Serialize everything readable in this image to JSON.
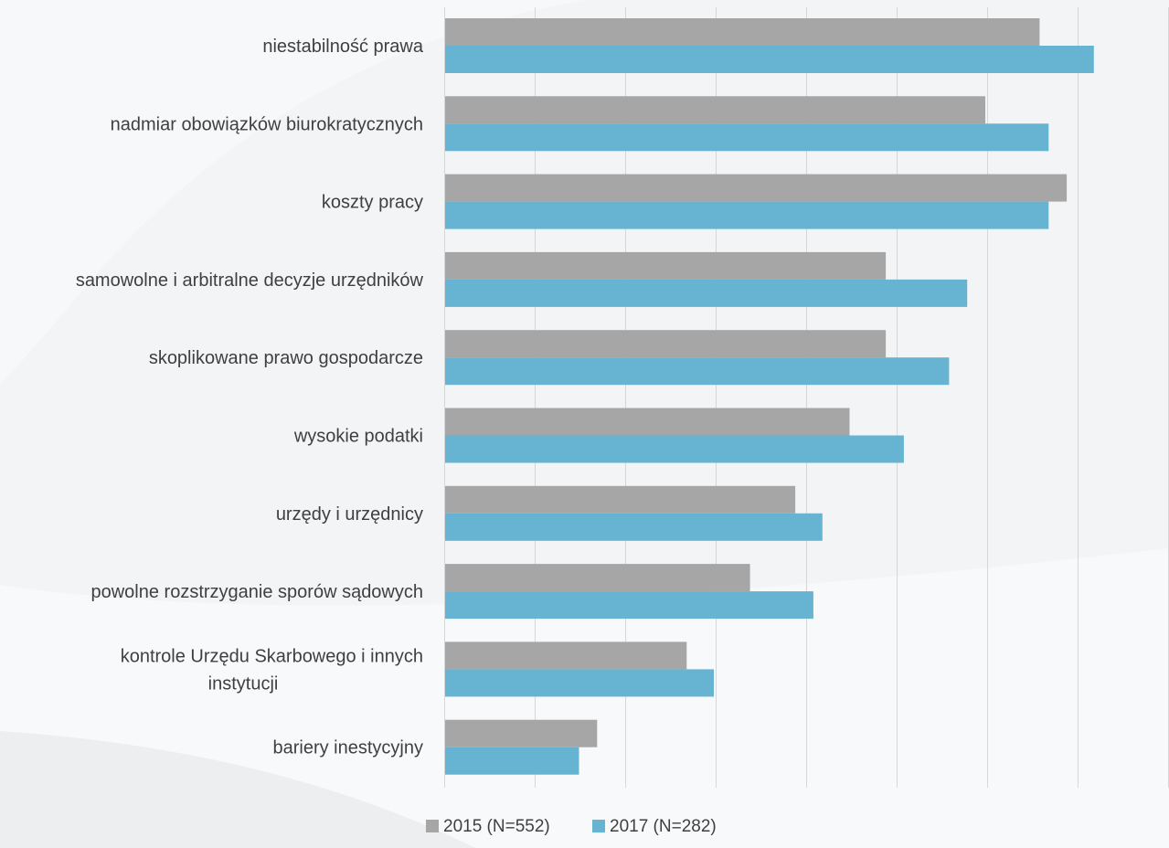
{
  "chart_data": {
    "type": "bar",
    "orientation": "horizontal",
    "categories": [
      "niestabilność prawa",
      "nadmiar obowiązków biurokratycznych",
      "koszty pracy",
      "samowolne i arbitralne decyzje urzędników",
      "skoplikowane prawo gospodarcze",
      "wysokie podatki",
      "urzędy i urzędnicy",
      "powolne rozstrzyganie sporów sądowych",
      "kontrole Urzędu Skarbowego i innych instytucji",
      "bariery inestycyjny"
    ],
    "category_lines": [
      [
        "niestabilność prawa"
      ],
      [
        "nadmiar obowiązków biurokratycznych"
      ],
      [
        "koszty pracy"
      ],
      [
        "samowolne i arbitralne decyzje urzędników"
      ],
      [
        "skoplikowane prawo gospodarcze"
      ],
      [
        "wysokie podatki"
      ],
      [
        "urzędy i urzędnicy"
      ],
      [
        "powolne rozstrzyganie sporów sądowych"
      ],
      [
        "kontrole Urzędu Skarbowego i innych",
        "instytucji"
      ],
      [
        "bariery inestycyjny"
      ]
    ],
    "series": [
      {
        "name": "2015 (N=552)",
        "color": "#a6a6a6",
        "values": [
          6.58,
          5.98,
          6.88,
          4.88,
          4.88,
          4.48,
          3.88,
          3.38,
          2.68,
          1.69
        ]
      },
      {
        "name": "2017 (N=282)",
        "color": "#66b3d2",
        "values": [
          7.18,
          6.68,
          6.68,
          5.78,
          5.58,
          5.08,
          4.18,
          4.08,
          2.98,
          1.49
        ]
      }
    ],
    "xlim": [
      0,
      8
    ],
    "x_gridlines": [
      0,
      1,
      2,
      3,
      4,
      5,
      6,
      7,
      8
    ],
    "x_tick_labels": false,
    "grid": true,
    "legend_position": "bottom",
    "title": "",
    "xlabel": "",
    "ylabel": ""
  }
}
